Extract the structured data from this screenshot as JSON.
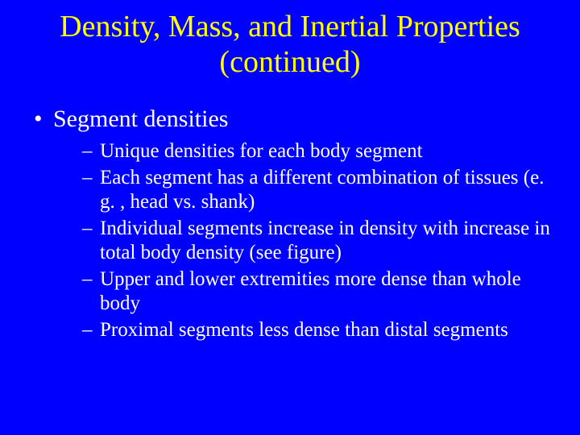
{
  "slide": {
    "background_color": "#0000ff",
    "title_color": "#ffff00",
    "text_color": "#ffffff",
    "title_fontsize": 38,
    "body_fontsize": 30,
    "sub_fontsize": 25,
    "font_family": "Times New Roman",
    "title": "Density, Mass, and Inertial Properties (continued)",
    "bullets": [
      {
        "text": "Segment densities",
        "children": [
          "Unique densities for each body segment",
          "Each segment has a different combination of tissues (e. g. , head vs. shank)",
          "Individual segments increase in density with increase in total body density (see figure)",
          "Upper and lower extremities more dense than whole body",
          "Proximal segments less dense than distal segments"
        ]
      }
    ]
  }
}
